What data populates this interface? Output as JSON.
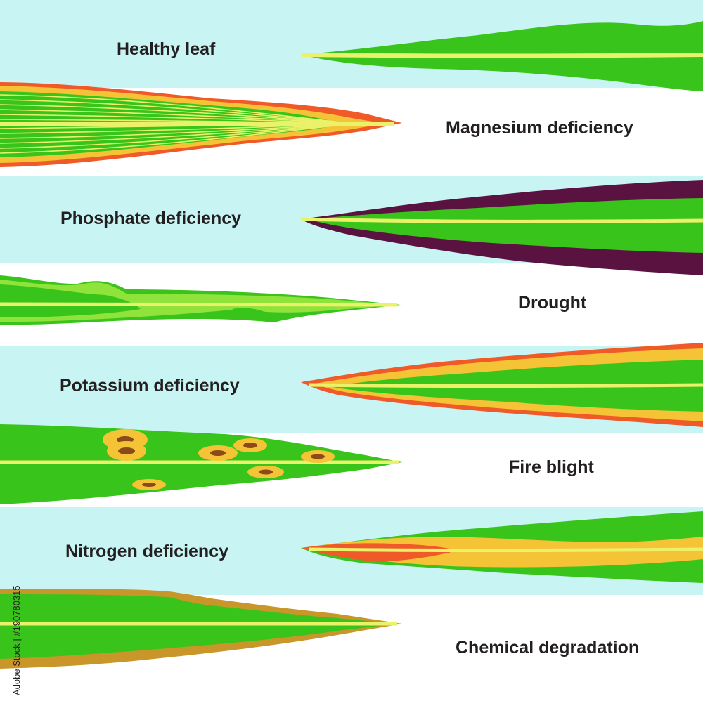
{
  "colors": {
    "band": "#c8f4f4",
    "leaf_green": "#39c41b",
    "light_green": "#8fe33a",
    "midrib": "#eaf26a",
    "vein_yellow": "#f5c336",
    "edge_red": "#f05a28",
    "purple": "#5a1340",
    "brown": "#c9962a",
    "spot_ring": "#f5c336",
    "spot_center": "#8b4a1a"
  },
  "labels": {
    "healthy": "Healthy leaf",
    "magnesium": "Magnesium deficiency",
    "phosphate": "Phosphate deficiency",
    "drought": "Drought",
    "potassium": "Potassium deficiency",
    "fire_blight": "Fire blight",
    "nitrogen": "Nitrogen deficiency",
    "chemical": "Chemical degradation"
  },
  "watermark": {
    "id": "#190780315",
    "stock": "Adobe Stock"
  }
}
